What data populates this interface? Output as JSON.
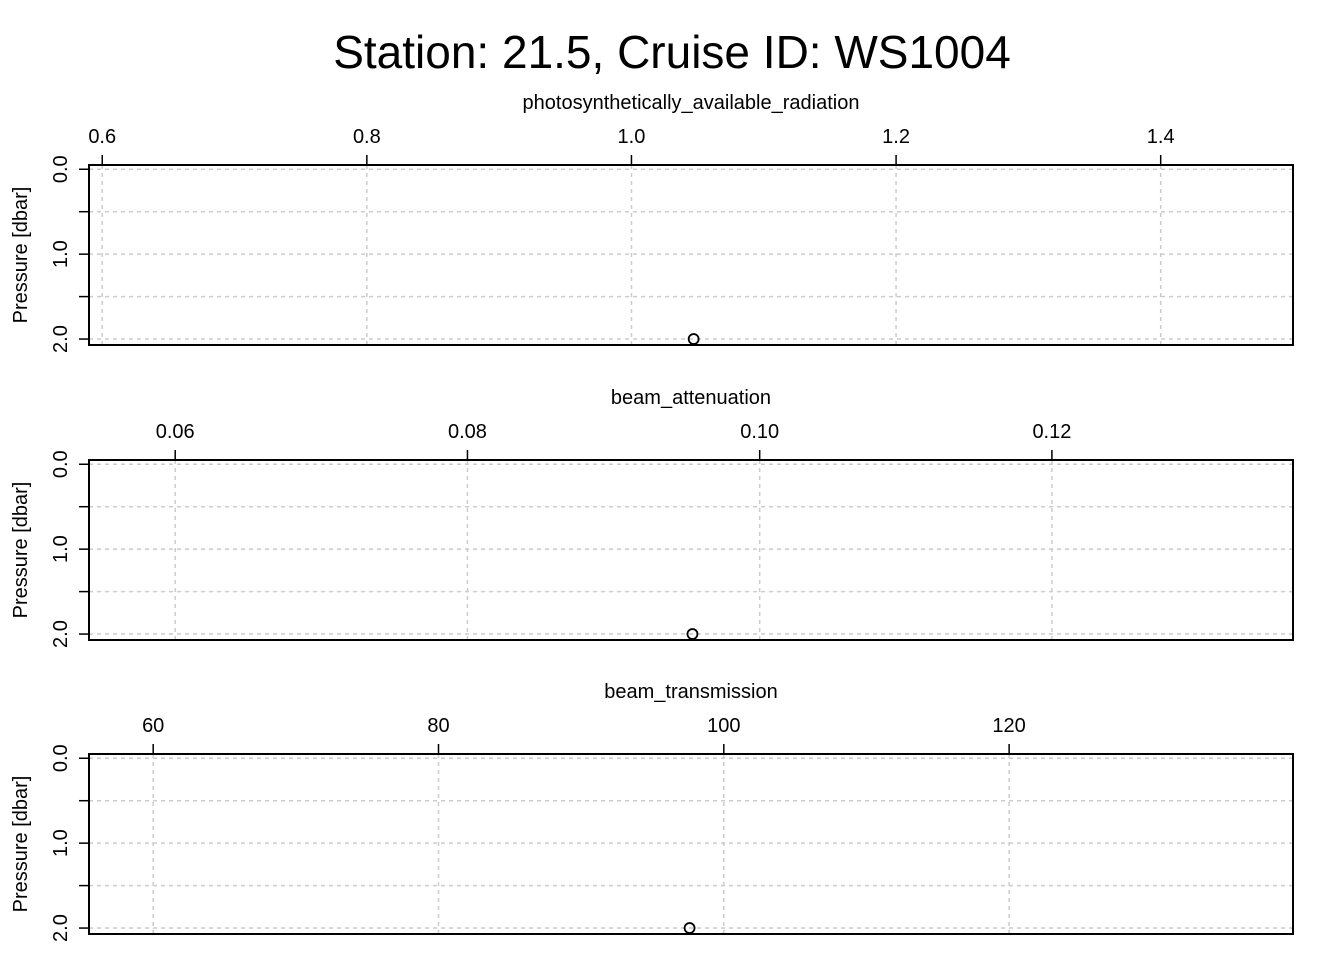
{
  "chart_data": {
    "type": "scatter",
    "title": "Station: 21.5, Cruise ID: WS1004",
    "panels": [
      {
        "xlabel": "photosynthetically_available_radiation",
        "ylabel": "Pressure [dbar]",
        "xlim": [
          0.59,
          1.5
        ],
        "ylim": [
          -0.05,
          2.07
        ],
        "x_ticks": [
          0.6,
          0.8,
          1.0,
          1.2,
          1.4
        ],
        "x_tick_labels": [
          "0.6",
          "0.8",
          "1.0",
          "1.2",
          "1.4"
        ],
        "y_ticks": [
          0.0,
          1.0,
          2.0
        ],
        "y_tick_labels": [
          "0.0",
          "1.0",
          "2.0"
        ],
        "y_minor_ticks": [
          0.5,
          1.5
        ],
        "y_reversed": true,
        "grid": true,
        "points": [
          {
            "x": 1.047,
            "y": 2.0
          }
        ]
      },
      {
        "xlabel": "beam_attenuation",
        "ylabel": "Pressure [dbar]",
        "xlim": [
          0.0541,
          0.1365
        ],
        "ylim": [
          -0.05,
          2.07
        ],
        "x_ticks": [
          0.06,
          0.08,
          0.1,
          0.12
        ],
        "x_tick_labels": [
          "0.06",
          "0.08",
          "0.10",
          "0.12"
        ],
        "y_ticks": [
          0.0,
          1.0,
          2.0
        ],
        "y_tick_labels": [
          "0.0",
          "1.0",
          "2.0"
        ],
        "y_minor_ticks": [
          0.5,
          1.5
        ],
        "y_reversed": true,
        "grid": true,
        "points": [
          {
            "x": 0.0954,
            "y": 2.0
          }
        ]
      },
      {
        "xlabel": "beam_transmission",
        "ylabel": "Pressure [dbar]",
        "xlim": [
          55.5,
          139.9
        ],
        "ylim": [
          -0.05,
          2.07
        ],
        "x_ticks": [
          60,
          80,
          100,
          120
        ],
        "x_tick_labels": [
          "60",
          "80",
          "100",
          "120"
        ],
        "y_ticks": [
          0.0,
          1.0,
          2.0
        ],
        "y_tick_labels": [
          "0.0",
          "1.0",
          "2.0"
        ],
        "y_minor_ticks": [
          0.5,
          1.5
        ],
        "y_reversed": true,
        "grid": true,
        "points": [
          {
            "x": 97.6,
            "y": 2.0
          }
        ]
      }
    ]
  }
}
